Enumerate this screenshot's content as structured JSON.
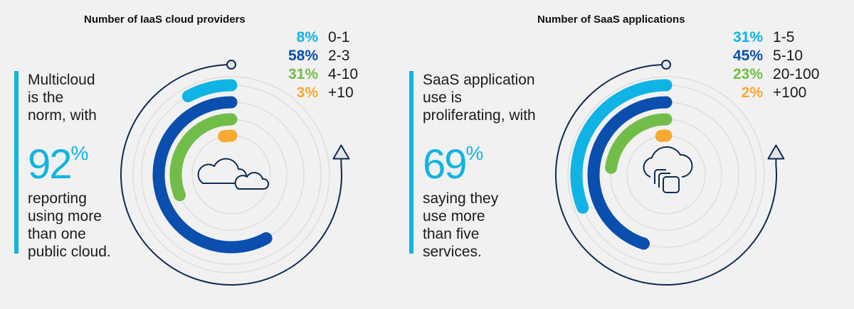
{
  "colors": {
    "cyan": "#0fb4e4",
    "blue": "#0a4fad",
    "green": "#72bd4a",
    "orange": "#f7a931",
    "outline": "#0d2c52",
    "ring": "#dedddd",
    "text": "#1b1b1b",
    "background": "#f2f1f1"
  },
  "left": {
    "callout": {
      "lines_before": [
        "Multicloud",
        "is the",
        "norm, with"
      ],
      "big_number": "92",
      "big_suffix": "%",
      "lines_after": [
        "reporting",
        "using more",
        "than one",
        "public cloud."
      ]
    },
    "icon": "two-clouds-icon"
  },
  "right": {
    "callout": {
      "lines_before": [
        "SaaS application",
        "use is",
        "proliferating, with"
      ],
      "big_number": "69",
      "big_suffix": "%",
      "lines_after": [
        "saying they",
        "use more",
        "than five",
        "services."
      ]
    },
    "icon": "cloud-with-app-stack-icon"
  },
  "chart_data": [
    {
      "type": "radial-bar",
      "title": "Number of IaaS cloud providers",
      "categories": [
        "0-1",
        "2-3",
        "4-10",
        "+10"
      ],
      "values": [
        8,
        58,
        31,
        3
      ],
      "labels": [
        "8%",
        "58%",
        "31%",
        "3%"
      ],
      "colors": [
        "#0fb4e4",
        "#0a4fad",
        "#72bd4a",
        "#f7a931"
      ],
      "unit": "%",
      "legend_position": "top-right"
    },
    {
      "type": "radial-bar",
      "title": "Number of SaaS applications",
      "categories": [
        "1-5",
        "5-10",
        "20-100",
        "+100"
      ],
      "values": [
        31,
        45,
        23,
        2
      ],
      "labels": [
        "31%",
        "45%",
        "23%",
        "2%"
      ],
      "colors": [
        "#0fb4e4",
        "#0a4fad",
        "#72bd4a",
        "#f7a931"
      ],
      "unit": "%",
      "legend_position": "top-right"
    }
  ]
}
